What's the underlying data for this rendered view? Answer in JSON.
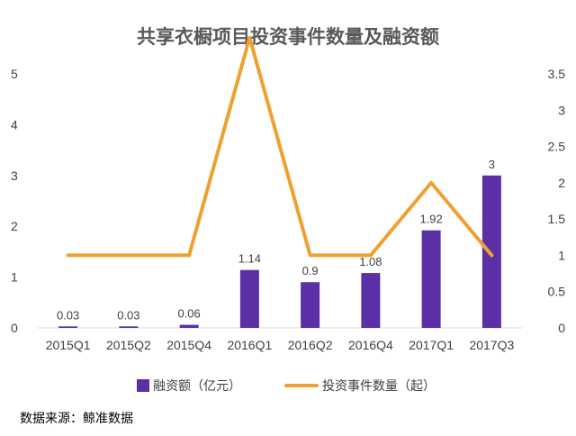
{
  "chart_data": {
    "type": "bar",
    "title": "共享衣橱项目投资事件数量及融资额",
    "categories": [
      "2015Q1",
      "2015Q2",
      "2015Q4",
      "2016Q1",
      "2016Q2",
      "2016Q4",
      "2017Q1",
      "2017Q3"
    ],
    "series": [
      {
        "name": "融资额（亿元）",
        "type": "bar",
        "axis": "left",
        "color": "#5B2FA6",
        "values": [
          0.03,
          0.03,
          0.06,
          1.14,
          0.9,
          1.08,
          1.92,
          3
        ],
        "value_labels": [
          "0.03",
          "0.03",
          "0.06",
          "1.14",
          "0.9",
          "1.08",
          "1.92",
          "3"
        ]
      },
      {
        "name": "投资事件数量（起）",
        "type": "line",
        "axis": "right",
        "color": "#F0A030",
        "values": [
          1,
          1,
          1,
          4,
          1,
          1,
          2,
          1
        ]
      }
    ],
    "y_left": {
      "ylim": [
        0,
        5
      ],
      "ticks": [
        "0",
        "1",
        "2",
        "3",
        "4",
        "5"
      ]
    },
    "y_right": {
      "ylim": [
        0,
        3.5
      ],
      "ticks": [
        "0",
        "0.5",
        "1",
        "1.5",
        "2",
        "2.5",
        "3",
        "3.5"
      ]
    },
    "grid": false,
    "legend_position": "bottom"
  },
  "source": "数据来源：鲸准数据"
}
